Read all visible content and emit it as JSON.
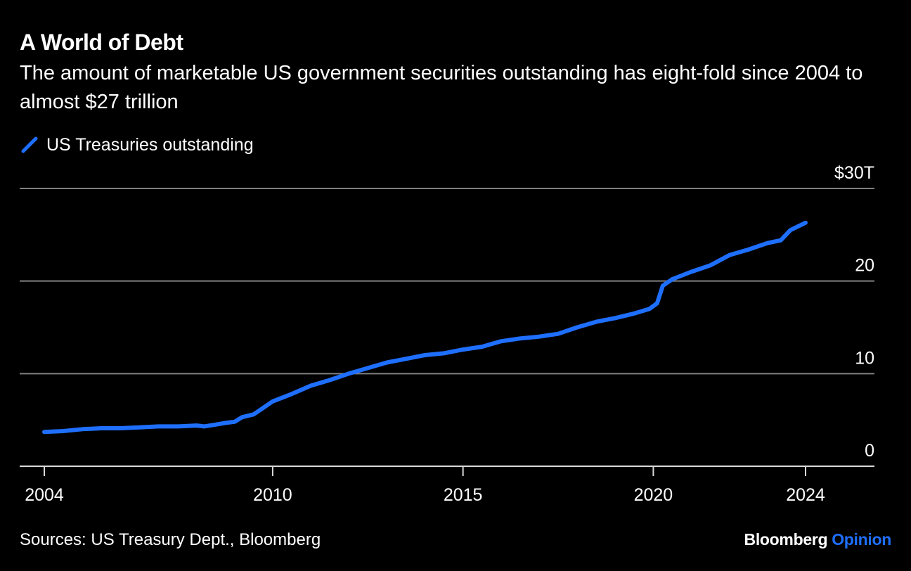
{
  "header": {
    "title": "A World of Debt",
    "subtitle": "The amount of marketable US government securities outstanding has eight-fold since 2004 to almost $27 trillion"
  },
  "footer": {
    "source": "Sources: US Treasury Dept., Bloomberg",
    "brand_main": "Bloomberg",
    "brand_accent": "Opinion"
  },
  "colors": {
    "background": "#000000",
    "series": "#1f6fff",
    "grid": "#808080",
    "text": "#ffffff"
  },
  "chart_data": {
    "type": "line",
    "title": "A World of Debt",
    "subtitle": "The amount of marketable US government securities outstanding has eight-fold since 2004 to almost $27 trillion",
    "legend_position": "top-left",
    "grid": true,
    "x_ticks": [
      "2004",
      "2010",
      "2015",
      "2020",
      "2024"
    ],
    "xlim": [
      2004,
      2024
    ],
    "y_ticks": [
      {
        "value": 0,
        "label": "0"
      },
      {
        "value": 10,
        "label": "10"
      },
      {
        "value": 20,
        "label": "20"
      },
      {
        "value": 30,
        "label": "$30T"
      }
    ],
    "ylim": [
      0,
      30
    ],
    "series": [
      {
        "name": "US Treasuries outstanding",
        "color": "#1f6fff",
        "points": [
          [
            2004.0,
            3.7
          ],
          [
            2004.5,
            3.8
          ],
          [
            2005.0,
            4.0
          ],
          [
            2005.5,
            4.1
          ],
          [
            2006.0,
            4.1
          ],
          [
            2006.5,
            4.2
          ],
          [
            2007.0,
            4.3
          ],
          [
            2007.5,
            4.3
          ],
          [
            2008.0,
            4.4
          ],
          [
            2008.2,
            4.3
          ],
          [
            2008.5,
            4.5
          ],
          [
            2008.8,
            4.7
          ],
          [
            2009.0,
            4.8
          ],
          [
            2009.2,
            5.3
          ],
          [
            2009.5,
            5.6
          ],
          [
            2010.0,
            7.0
          ],
          [
            2010.5,
            7.8
          ],
          [
            2011.0,
            8.7
          ],
          [
            2011.5,
            9.3
          ],
          [
            2012.0,
            10.0
          ],
          [
            2012.5,
            10.6
          ],
          [
            2013.0,
            11.2
          ],
          [
            2013.5,
            11.6
          ],
          [
            2014.0,
            12.0
          ],
          [
            2014.5,
            12.2
          ],
          [
            2015.0,
            12.6
          ],
          [
            2015.5,
            12.9
          ],
          [
            2016.0,
            13.5
          ],
          [
            2016.5,
            13.8
          ],
          [
            2017.0,
            14.0
          ],
          [
            2017.5,
            14.3
          ],
          [
            2018.0,
            15.0
          ],
          [
            2018.5,
            15.6
          ],
          [
            2019.0,
            16.0
          ],
          [
            2019.5,
            16.5
          ],
          [
            2019.9,
            17.0
          ],
          [
            2020.1,
            17.6
          ],
          [
            2020.25,
            19.5
          ],
          [
            2020.5,
            20.2
          ],
          [
            2021.0,
            21.0
          ],
          [
            2021.5,
            21.7
          ],
          [
            2022.0,
            22.8
          ],
          [
            2022.5,
            23.4
          ],
          [
            2023.0,
            24.1
          ],
          [
            2023.35,
            24.4
          ],
          [
            2023.6,
            25.5
          ],
          [
            2024.0,
            26.3
          ]
        ]
      }
    ]
  }
}
